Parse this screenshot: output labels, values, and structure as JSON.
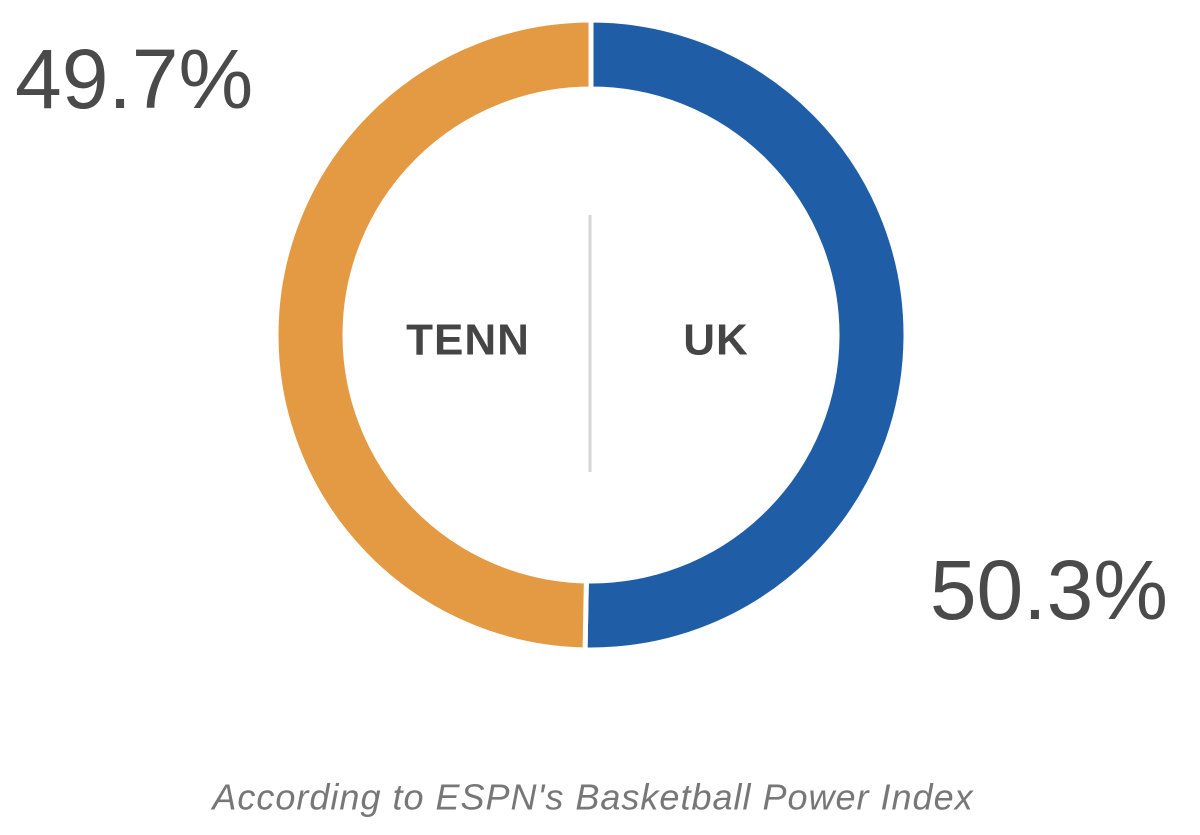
{
  "chart_data": {
    "type": "donut",
    "categories": [
      "UK",
      "TENN"
    ],
    "values": [
      50.3,
      49.7
    ],
    "value_labels": [
      "50.3%",
      "49.7%"
    ],
    "colors": [
      "#1f5ea6",
      "#e39a42"
    ],
    "caption": "According to ESPN's Basketball Power Index"
  }
}
